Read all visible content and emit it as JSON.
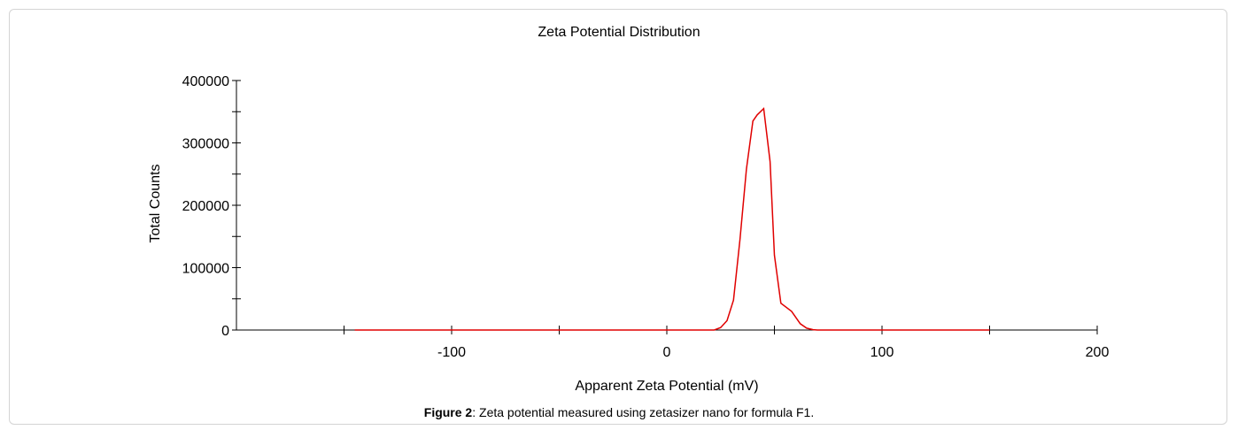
{
  "caption": {
    "label": "Figure 2",
    "text": ": Zeta potential measured using zetasizer nano for formula F1."
  },
  "chart_data": {
    "type": "line",
    "title": "Zeta Potential Distribution",
    "xlabel": "Apparent Zeta Potential (mV)",
    "ylabel": "Total Counts",
    "xlim": [
      -200,
      200
    ],
    "ylim": [
      0,
      400000
    ],
    "x_ticks": [
      -100,
      0,
      100,
      200
    ],
    "y_ticks": [
      0,
      100000,
      200000,
      300000,
      400000
    ],
    "grid": false,
    "line_color": "#e00000",
    "series": [
      {
        "x": [
          -145,
          -100,
          -50,
          0,
          15,
          20,
          22,
          25,
          28,
          31,
          34,
          37,
          40,
          42,
          45,
          48,
          50,
          53,
          58,
          62,
          65,
          68,
          70,
          75,
          100,
          150
        ],
        "values": [
          0,
          0,
          0,
          0,
          0,
          0,
          0,
          4000,
          15000,
          48000,
          145000,
          258000,
          335000,
          345000,
          355000,
          270000,
          120000,
          43000,
          30000,
          10000,
          3000,
          500,
          0,
          0,
          0,
          0
        ]
      }
    ]
  }
}
